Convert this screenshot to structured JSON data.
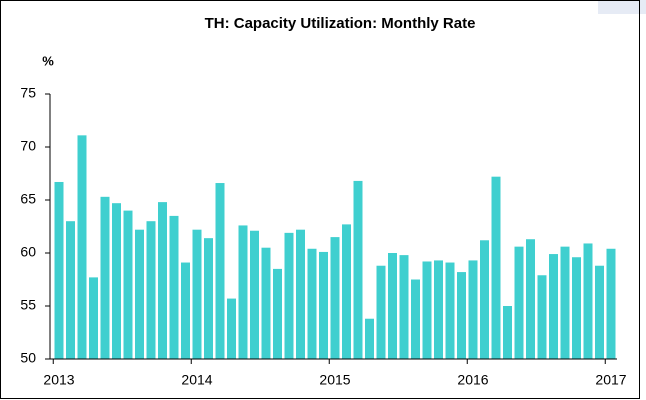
{
  "chart_data": {
    "type": "bar",
    "title": "TH: Capacity Utilization: Monthly Rate",
    "y_label": "%",
    "categories": [
      "2013",
      null,
      null,
      null,
      null,
      null,
      null,
      null,
      null,
      null,
      null,
      null,
      "2014",
      null,
      null,
      null,
      null,
      null,
      null,
      null,
      null,
      null,
      null,
      null,
      "2015",
      null,
      null,
      null,
      null,
      null,
      null,
      null,
      null,
      null,
      null,
      null,
      "2016",
      null,
      null,
      null,
      null,
      null,
      null,
      null,
      null,
      null,
      null,
      null,
      "2017"
    ],
    "values": [
      66.7,
      63.0,
      71.1,
      57.7,
      65.3,
      64.7,
      64.0,
      62.2,
      63.0,
      64.8,
      63.5,
      59.1,
      62.2,
      61.4,
      66.6,
      55.7,
      62.6,
      62.1,
      60.5,
      58.5,
      61.9,
      62.2,
      60.4,
      60.1,
      61.5,
      62.7,
      66.8,
      53.8,
      58.8,
      60.0,
      59.8,
      57.5,
      59.2,
      59.3,
      59.1,
      58.2,
      59.3,
      61.2,
      67.2,
      55.0,
      60.6,
      61.3,
      57.9,
      59.9,
      60.6,
      59.6,
      60.9,
      58.8,
      60.4
    ],
    "color": "#3fcfcf",
    "ylim": [
      50,
      75
    ],
    "yticks": [
      50,
      55,
      60,
      65,
      70,
      75
    ],
    "grid": false
  }
}
